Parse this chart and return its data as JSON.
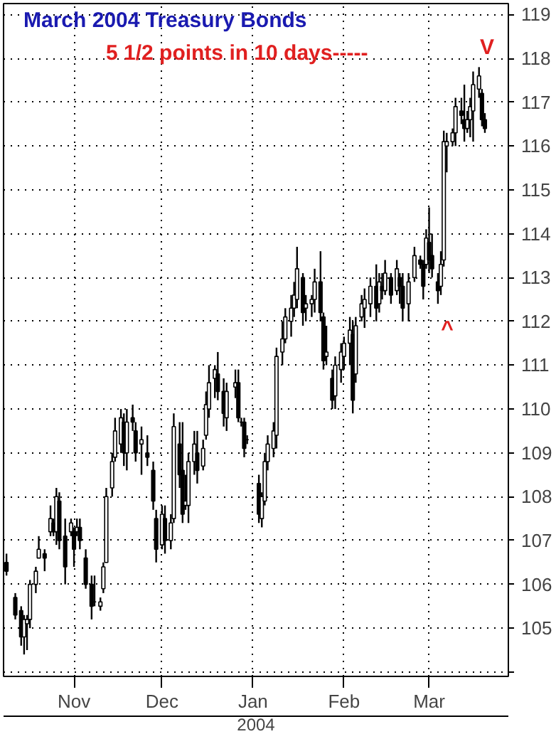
{
  "chart_data": {
    "type": "candlestick",
    "title": "March 2004 Treasury Bonds",
    "annotations": [
      "5 1/2 points in 10 days-----",
      "^",
      "V",
      "2004"
    ],
    "x": [
      "2003-10-09",
      "2003-10-12",
      "2003-10-14",
      "2003-10-15",
      "2003-10-16",
      "2003-10-17",
      "2003-10-19",
      "2003-10-20",
      "2003-10-22",
      "2003-10-24",
      "2003-10-25",
      "2003-10-26",
      "2003-10-27",
      "2003-10-29",
      "2003-10-31",
      "2003-11-01",
      "2003-11-02",
      "2003-11-03",
      "2003-11-05",
      "2003-11-07",
      "2003-11-08",
      "2003-11-10",
      "2003-11-11",
      "2003-11-12",
      "2003-11-14",
      "2003-11-15",
      "2003-11-17",
      "2003-11-18",
      "2003-11-19",
      "2003-11-21",
      "2003-11-22",
      "2003-11-24",
      "2003-11-26",
      "2003-11-28",
      "2003-11-29",
      "2003-12-01",
      "2003-12-02",
      "2003-12-04",
      "2003-12-05",
      "2003-12-07",
      "2003-12-08",
      "2003-12-09",
      "2003-12-10",
      "2003-12-12",
      "2003-12-13",
      "2003-12-15",
      "2003-12-16",
      "2003-12-17",
      "2003-12-19",
      "2003-12-20",
      "2003-12-22",
      "2003-12-23",
      "2003-12-26",
      "2003-12-27",
      "2003-12-28",
      "2003-12-29",
      "2003-12-30",
      "2004-01-03",
      "2004-01-04",
      "2004-01-05",
      "2004-01-06",
      "2004-01-08",
      "2004-01-09",
      "2004-01-11",
      "2004-01-12",
      "2004-01-14",
      "2004-01-15",
      "2004-01-16",
      "2004-01-18",
      "2004-01-19",
      "2004-01-21",
      "2004-01-22",
      "2004-01-24",
      "2004-01-25",
      "2004-01-26",
      "2004-01-28",
      "2004-01-29",
      "2004-01-31",
      "2004-02-01",
      "2004-02-03",
      "2004-02-04",
      "2004-02-05",
      "2004-02-07",
      "2004-02-08",
      "2004-02-10",
      "2004-02-12",
      "2004-02-13",
      "2004-02-14",
      "2004-02-15",
      "2004-02-17",
      "2004-02-19",
      "2004-02-20",
      "2004-02-21",
      "2004-02-23",
      "2004-02-25",
      "2004-02-27",
      "2004-02-28",
      "2004-02-29",
      "2004-03-01",
      "2004-03-02",
      "2004-03-04",
      "2004-03-05",
      "2004-03-06",
      "2004-03-07",
      "2004-03-09",
      "2004-03-10",
      "2004-03-12",
      "2004-03-13",
      "2004-03-14",
      "2004-03-15",
      "2004-03-16",
      "2004-03-18",
      "2004-03-19",
      "2004-03-20"
    ],
    "ohlc": [
      [
        106.5,
        106.7,
        106.2,
        106.3
      ],
      [
        105.7,
        105.8,
        105.2,
        105.3
      ],
      [
        105.4,
        105.5,
        104.6,
        104.8
      ],
      [
        104.8,
        105.3,
        104.4,
        105.2
      ],
      [
        105.1,
        105.3,
        104.5,
        105.2
      ],
      [
        105.2,
        106.1,
        105.0,
        106.0
      ],
      [
        106.0,
        106.4,
        105.8,
        106.3
      ],
      [
        106.6,
        107.1,
        106.6,
        106.8
      ],
      [
        106.7,
        106.8,
        106.3,
        106.6
      ],
      [
        107.2,
        107.8,
        107.1,
        107.5
      ],
      [
        107.4,
        107.5,
        107.1,
        107.2
      ],
      [
        107.2,
        108.2,
        106.9,
        108.0
      ],
      [
        107.9,
        108.1,
        106.8,
        107.0
      ],
      [
        107.1,
        107.5,
        106.0,
        106.4
      ],
      [
        107.2,
        107.5,
        107.1,
        107.4
      ],
      [
        107.2,
        107.3,
        106.4,
        106.8
      ],
      [
        107.2,
        107.5,
        107.1,
        107.3
      ],
      [
        107.3,
        107.5,
        106.8,
        107.0
      ],
      [
        106.6,
        106.8,
        105.9,
        106.0
      ],
      [
        106.0,
        106.2,
        105.2,
        105.5
      ],
      [
        105.6,
        106.2,
        105.5,
        105.6
      ],
      [
        105.5,
        105.7,
        105.4,
        105.6
      ],
      [
        105.9,
        106.5,
        105.8,
        106.4
      ],
      [
        106.5,
        108.2,
        106.5,
        108.0
      ],
      [
        108.2,
        109.0,
        108.0,
        108.8
      ],
      [
        108.9,
        109.8,
        108.8,
        109.5
      ],
      [
        109.2,
        110.0,
        109.0,
        109.8
      ],
      [
        109.7,
        109.9,
        108.7,
        109.0
      ],
      [
        109.0,
        110.0,
        108.6,
        109.7
      ],
      [
        109.8,
        110.1,
        109.5,
        109.7
      ],
      [
        109.5,
        109.7,
        108.8,
        109.0
      ],
      [
        109.2,
        109.6,
        108.5,
        109.3
      ],
      [
        109.0,
        109.4,
        108.7,
        108.9
      ],
      [
        108.6,
        108.8,
        107.7,
        107.9
      ],
      [
        107.5,
        107.7,
        106.5,
        106.8
      ],
      [
        106.9,
        107.8,
        106.8,
        107.6
      ],
      [
        107.5,
        107.8,
        106.7,
        107.0
      ],
      [
        107.0,
        107.6,
        106.8,
        107.4
      ],
      [
        107.5,
        109.9,
        107.4,
        109.6
      ],
      [
        109.2,
        109.7,
        108.2,
        108.5
      ],
      [
        108.6,
        109.7,
        107.4,
        107.6
      ],
      [
        107.8,
        108.5,
        107.7,
        107.9
      ],
      [
        107.8,
        109.0,
        107.4,
        108.8
      ],
      [
        108.8,
        109.5,
        108.5,
        109.2
      ],
      [
        109.0,
        109.5,
        108.3,
        108.6
      ],
      [
        108.7,
        109.3,
        108.6,
        109.1
      ],
      [
        109.4,
        110.4,
        109.3,
        110.1
      ],
      [
        110.0,
        111.0,
        109.8,
        110.6
      ],
      [
        110.7,
        111.0,
        110.25,
        110.9
      ],
      [
        110.8,
        111.3,
        110.2,
        110.4
      ],
      [
        110.4,
        110.7,
        109.6,
        109.9
      ],
      [
        109.8,
        110.6,
        109.5,
        110.4
      ],
      [
        110.5,
        110.9,
        110.25,
        110.6
      ],
      [
        110.6,
        110.9,
        109.7,
        109.8
      ],
      [
        109.7,
        109.8,
        109.6,
        109.7
      ],
      [
        109.7,
        109.8,
        108.9,
        109.1
      ],
      [
        109.3,
        109.4,
        109.2,
        109.3
      ],
      [
        108.3,
        108.5,
        107.4,
        107.6
      ],
      [
        107.5,
        108.1,
        107.3,
        108.0
      ],
      [
        107.9,
        109.0,
        107.8,
        108.8
      ],
      [
        108.8,
        109.4,
        108.6,
        109.2
      ],
      [
        109.1,
        109.7,
        108.9,
        109.5
      ],
      [
        109.4,
        111.4,
        109.1,
        111.2
      ],
      [
        111.3,
        112.0,
        111.0,
        111.6
      ],
      [
        111.6,
        112.3,
        111.5,
        112.1
      ],
      [
        112.0,
        112.6,
        111.65,
        112.3
      ],
      [
        112.3,
        112.9,
        112.1,
        112.6
      ],
      [
        112.5,
        113.7,
        112.3,
        113.2
      ],
      [
        113.0,
        113.1,
        111.9,
        112.2
      ],
      [
        112.3,
        112.6,
        112.0,
        112.4
      ],
      [
        112.4,
        112.6,
        112.1,
        112.5
      ],
      [
        112.5,
        113.2,
        112.2,
        112.9
      ],
      [
        112.9,
        113.6,
        112.0,
        112.2
      ],
      [
        112.1,
        112.2,
        110.9,
        111.1
      ],
      [
        111.2,
        111.9,
        111.0,
        111.3
      ],
      [
        110.7,
        110.9,
        110.0,
        110.2
      ],
      [
        110.3,
        111.2,
        110.0,
        111.0
      ],
      [
        110.9,
        111.5,
        110.6,
        111.3
      ],
      [
        111.2,
        111.65,
        110.9,
        111.5
      ],
      [
        111.5,
        112.1,
        111.0,
        111.8
      ],
      [
        111.7,
        112.0,
        109.9,
        110.2
      ],
      [
        110.8,
        112.1,
        110.6,
        111.9
      ],
      [
        112.1,
        112.6,
        112.0,
        112.4
      ],
      [
        112.3,
        112.75,
        111.85,
        112.5
      ],
      [
        112.4,
        113.0,
        112.1,
        112.8
      ],
      [
        112.8,
        113.3,
        112.0,
        112.3
      ],
      [
        112.4,
        113.1,
        112.2,
        112.9
      ],
      [
        112.8,
        113.1,
        112.5,
        112.7
      ],
      [
        112.7,
        113.4,
        112.6,
        113.1
      ],
      [
        113.0,
        113.1,
        112.4,
        112.6
      ],
      [
        112.7,
        113.4,
        112.6,
        113.2
      ],
      [
        113.0,
        113.1,
        112.4,
        112.8
      ],
      [
        112.8,
        113.1,
        112.0,
        112.3
      ],
      [
        112.4,
        113.1,
        112.0,
        112.9
      ],
      [
        113.0,
        113.7,
        112.9,
        113.5
      ],
      [
        113.4,
        113.5,
        113.2,
        113.3
      ],
      [
        113.3,
        113.4,
        112.5,
        112.8
      ],
      [
        113.3,
        114.1,
        113.2,
        113.9
      ],
      [
        113.8,
        114.6,
        113.1,
        113.4
      ],
      [
        113.5,
        114.0,
        113.0,
        113.2
      ],
      [
        112.9,
        113.1,
        112.4,
        112.7
      ],
      [
        112.8,
        113.6,
        112.6,
        113.3
      ],
      [
        113.4,
        116.35,
        113.25,
        116.1
      ],
      [
        116.0,
        116.3,
        115.4,
        116.1
      ],
      [
        116.1,
        116.4,
        116.0,
        116.3
      ],
      [
        116.3,
        117.1,
        116.0,
        116.9
      ],
      [
        116.8,
        117.1,
        116.5,
        116.7
      ],
      [
        116.6,
        117.4,
        116.1,
        116.4
      ],
      [
        116.4,
        116.8,
        116.3,
        116.6
      ],
      [
        116.6,
        117.1,
        116.2,
        116.9
      ],
      [
        116.8,
        117.7,
        116.1,
        117.4
      ],
      [
        117.3,
        117.8,
        117.1,
        117.6
      ],
      [
        117.2,
        117.3,
        116.45,
        116.6
      ],
      [
        116.6,
        116.75,
        116.3,
        116.4
      ]
    ],
    "xlim": [
      "2003-10-08",
      "2004-03-28"
    ],
    "xticks": [
      {
        "value": "2003-11-01",
        "label": "Nov"
      },
      {
        "value": "2003-12-01",
        "label": "Dec"
      },
      {
        "value": "2004-01-01",
        "label": "Jan"
      },
      {
        "value": "2004-02-01",
        "label": "Feb"
      },
      {
        "value": "2004-03-01",
        "label": "Mar"
      }
    ],
    "ylim": [
      103.9,
      119.25
    ],
    "yticks": [
      {
        "value": 104,
        "label": null
      },
      105,
      106,
      107,
      108,
      109,
      110,
      111,
      112,
      113,
      114,
      115,
      116,
      117,
      118,
      119
    ],
    "grid": true
  }
}
